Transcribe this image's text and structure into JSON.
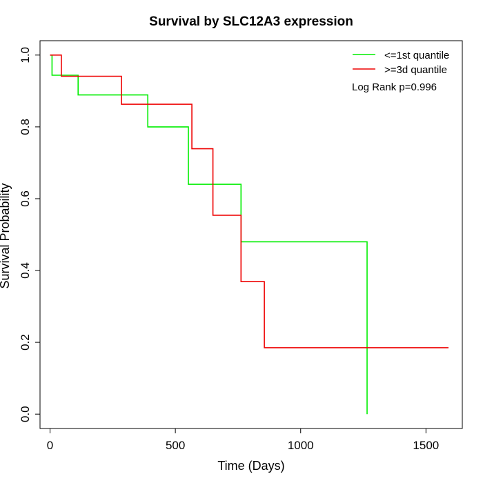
{
  "chart_data": {
    "type": "line",
    "title": "Survival by SLC12A3 expression",
    "xlabel": "Time (Days)",
    "ylabel": "Survival Probability",
    "xlim": [
      -40,
      1645
    ],
    "ylim": [
      -0.04,
      1.04
    ],
    "x_ticks": [
      0,
      500,
      1000,
      1500
    ],
    "y_ticks": [
      0.0,
      0.2,
      0.4,
      0.6,
      0.8,
      1.0
    ],
    "x_tick_labels": [
      "0",
      "500",
      "1000",
      "1500"
    ],
    "y_tick_labels": [
      "0.0",
      "0.2",
      "0.4",
      "0.6",
      "0.8",
      "1.0"
    ],
    "grid": false,
    "legend_position": "top-right",
    "annotation": "Log Rank p=0.996",
    "series": [
      {
        "name": "<=1st quantile",
        "color": "#00ee00",
        "step_points": [
          [
            0,
            1.0
          ],
          [
            8,
            0.944
          ],
          [
            112,
            0.889
          ],
          [
            390,
            0.8
          ],
          [
            552,
            0.64
          ],
          [
            762,
            0.48
          ],
          [
            1265,
            0.0
          ]
        ]
      },
      {
        "name": ">=3d quantile",
        "color": "#ee0000",
        "step_points": [
          [
            0,
            1.0
          ],
          [
            45,
            0.941
          ],
          [
            285,
            0.863
          ],
          [
            566,
            0.739
          ],
          [
            650,
            0.554
          ],
          [
            762,
            0.369
          ],
          [
            855,
            0.185
          ],
          [
            1590,
            0.185
          ]
        ]
      }
    ]
  }
}
